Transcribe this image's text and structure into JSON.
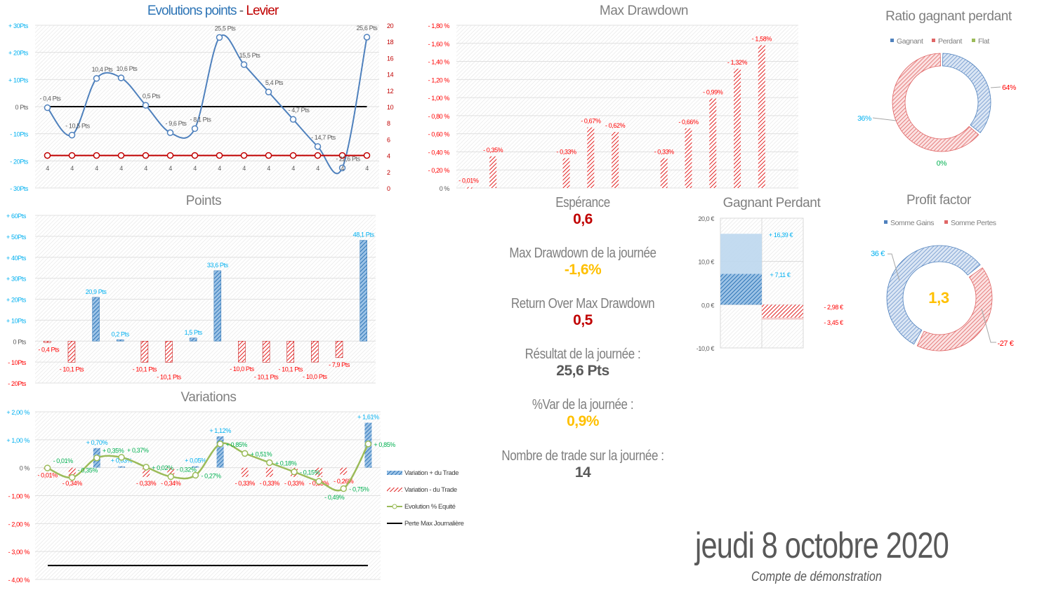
{
  "colors": {
    "blue": "#2e75b6",
    "cyan": "#00b0f0",
    "red": "#c00000",
    "red_light": "#ff0000",
    "green_line": "#9bbb59",
    "green_text": "#00b050",
    "yellow": "#ffc000",
    "dark": "#595959"
  },
  "chart_data": [
    {
      "id": "evolution",
      "type": "line",
      "title_part1": "Evolutions points",
      "title_sep": " - ",
      "title_part2": "Levier",
      "y_left": {
        "range": [
          -30,
          30
        ],
        "ticks": [
          "- 30Pts",
          "- 20Pts",
          "- 10Pts",
          "0 Pts",
          "+ 10Pts",
          "+ 20Pts",
          "+ 30Pts"
        ]
      },
      "y_right": {
        "range": [
          0,
          20
        ],
        "ticks": [
          "0",
          "2",
          "4",
          "6",
          "8",
          "10",
          "12",
          "14",
          "16",
          "18",
          "20"
        ]
      },
      "series": [
        {
          "values": [
            -0.4,
            -10.5,
            10.4,
            10.6,
            0.5,
            -9.6,
            -8.1,
            25.5,
            15.5,
            5.4,
            -4.7,
            -14.7,
            -22.6,
            25.6
          ],
          "labels": [
            "- 0,4 Pts",
            "- 10,5 Pts",
            "10,4 Pts",
            "10,6 Pts",
            "0,5 Pts",
            "- 9,6 Pts",
            "- 8,1 Pts",
            "25,5 Pts",
            "15,5 Pts",
            "5,4 Pts",
            "- 4,7 Pts",
            "- 14,7 Pts",
            "- 22,6 Pts",
            "25,6 Pts"
          ],
          "color": "#4f81bd",
          "axis": "left",
          "smooth": true
        },
        {
          "values": [
            4,
            4,
            4,
            4,
            4,
            4,
            4,
            4,
            4,
            4,
            4,
            4,
            4,
            4
          ],
          "labels": [
            "4",
            "4",
            "4",
            "4",
            "4",
            "4",
            "4",
            "4",
            "4",
            "4",
            "4",
            "4",
            "4",
            "4"
          ],
          "color": "#c00000",
          "axis": "right"
        }
      ],
      "reference_line": 0
    },
    {
      "id": "points",
      "type": "bar",
      "title": "Points",
      "ylim": [
        -20,
        60
      ],
      "ticks": [
        "- 20Pts",
        "- 10Pts",
        "0 Pts",
        "+ 10Pts",
        "+ 20Pts",
        "+ 30Pts",
        "+ 40Pts",
        "+ 50Pts",
        "+ 60Pts"
      ],
      "values": [
        -0.4,
        -10.1,
        20.9,
        0.2,
        -10.1,
        -10.1,
        1.5,
        33.6,
        -10.0,
        -10.1,
        -10.1,
        -10.0,
        -7.9,
        48.1
      ],
      "labels": [
        "- 0,4 Pts",
        "- 10,1 Pts",
        "20,9 Pts",
        "0,2 Pts",
        "- 10,1 Pts",
        "- 10,1 Pts",
        "1,5 Pts",
        "33,6 Pts",
        "- 10,0 Pts",
        "- 10,1 Pts",
        "- 10,1 Pts",
        "- 10,0 Pts",
        "- 7,9 Pts",
        "48,1 Pts"
      ]
    },
    {
      "id": "variations",
      "type": "bar",
      "title": "Variations",
      "ylim": [
        -4,
        2
      ],
      "ticks": [
        "- 4,00 %",
        "- 3,00 %",
        "- 2,00 %",
        "- 1,00 %",
        "0 %",
        "+ 1,00 %",
        "+ 2,00 %"
      ],
      "series": [
        {
          "name": "Variation + du Trade",
          "values": [
            -0.01,
            -0.34,
            0.7,
            0.03,
            -0.33,
            -0.34,
            0.05,
            1.12,
            -0.33,
            -0.33,
            -0.33,
            -0.33,
            -0.26,
            1.61
          ],
          "labels": [
            "- 0,01%",
            "- 0,34%",
            "+ 0,70%",
            "+ 0,03%",
            "- 0,33%",
            "- 0,34%",
            "+ 0,05%",
            "+ 1,12%",
            "- 0,33%",
            "- 0,33%",
            "- 0,33%",
            "- 0,33%",
            "- 0,26%",
            "+ 1,61%"
          ]
        },
        {
          "name": "Variation - du Trade"
        },
        {
          "name": "Evolution % Equité",
          "values": [
            -0.01,
            -0.35,
            0.35,
            0.37,
            0.02,
            -0.32,
            -0.27,
            0.85,
            0.51,
            0.18,
            -0.15,
            -0.49,
            -0.75,
            0.85
          ],
          "labels": [
            "- 0,01%",
            "- 0,35%",
            "+ 0,35%",
            "+ 0,37%",
            "+ 0,02%",
            "- 0,32%",
            "- 0,27%",
            "+ 0,85%",
            "+ 0,51%",
            "+ 0,18%",
            "- 0,15%",
            "- 0,49%",
            "- 0,75%",
            "+ 0,85%"
          ]
        },
        {
          "name": "Perte Max Journalière",
          "value": -3.5
        }
      ],
      "legend": "right"
    },
    {
      "id": "drawdown",
      "type": "bar",
      "title": "Max Drawdown",
      "ylim": [
        0,
        1.8
      ],
      "ticks": [
        "0 %",
        "- 0,20 %",
        "- 0,40 %",
        "- 0,60 %",
        "- 0,80 %",
        "- 1,00 %",
        "- 1,20 %",
        "- 1,40 %",
        "- 1,60 %",
        "- 1,80 %"
      ],
      "values": [
        0.01,
        0.35,
        0,
        0,
        0.33,
        0.67,
        0.62,
        0,
        0.33,
        0.66,
        0.99,
        1.32,
        1.58,
        0
      ],
      "labels": [
        "- 0,01%",
        "- 0,35%",
        "",
        "",
        "- 0,33%",
        "- 0,67%",
        "- 0,62%",
        "",
        "- 0,33%",
        "- 0,66%",
        "- 0,99%",
        "- 1,32%",
        "- 1,58%",
        ""
      ]
    },
    {
      "id": "ratio",
      "type": "pie",
      "title": "Ratio gagnant perdant",
      "legend_position": "top",
      "slices": [
        {
          "name": "Gagnant",
          "value": 36,
          "label": "36%",
          "color": "#4f81bd"
        },
        {
          "name": "Perdant",
          "value": 64,
          "label": "64%",
          "color": "#e06666"
        },
        {
          "name": "Flat",
          "value": 0,
          "label": "0%",
          "color": "#9bbb59"
        }
      ]
    },
    {
      "id": "gagnant_perdant",
      "type": "bar",
      "title": "Gagnant Perdant",
      "ylim": [
        -10,
        20
      ],
      "ticks": [
        "-10,0 €",
        "0,0 €",
        "10,0 €",
        "20,0 €"
      ],
      "values": [
        16.39,
        7.11,
        -2.98,
        -3.45
      ],
      "labels": [
        "+ 16,39 €",
        "+ 7,11 €",
        "- 2,98 €",
        "- 3,45 €"
      ]
    },
    {
      "id": "profit_factor",
      "type": "pie",
      "title": "Profit factor",
      "legend_position": "top",
      "center_label": "1,3",
      "slices": [
        {
          "name": "Somme Gains",
          "value": 36,
          "label": "36 €",
          "color": "#4f81bd"
        },
        {
          "name": "Somme Pertes",
          "value": 27,
          "label": "-27 €",
          "color": "#e06666"
        }
      ]
    }
  ],
  "kpis": [
    {
      "label": "Espérance",
      "value": "0,6",
      "color": "#c00000"
    },
    {
      "label": "Max Drawdown de la journée",
      "value": "-1,6%",
      "color": "#ffc000"
    },
    {
      "label": "Return Over Max Drawdown",
      "value": "0,5",
      "color": "#c00000"
    },
    {
      "label": "Résultat de la journée :",
      "value": "25,6 Pts",
      "color": "#595959"
    },
    {
      "label": "%Var de la journée :",
      "value": "0,9%",
      "color": "#ffc000"
    },
    {
      "label": "Nombre de trade sur la journée :",
      "value": "14",
      "color": "#595959"
    }
  ],
  "date": "jeudi 8 octobre 2020",
  "account": "Compte de démonstration"
}
